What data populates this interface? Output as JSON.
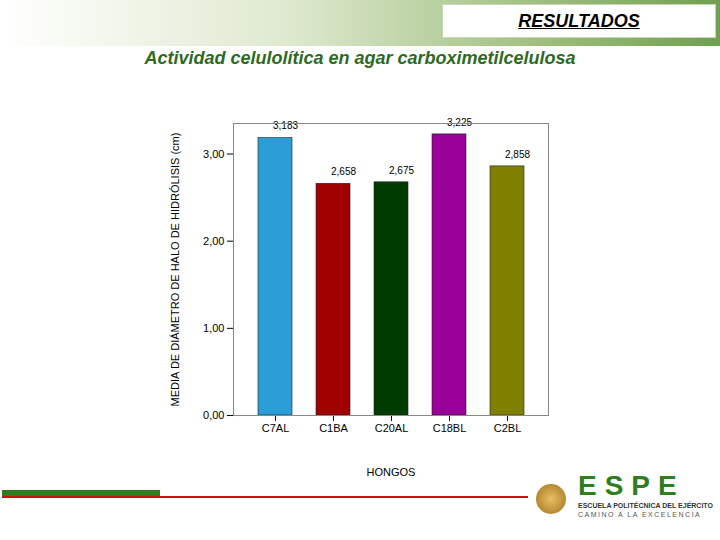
{
  "chart_data": {
    "type": "bar",
    "title": "Actividad celulolítica en agar carboximetilcelulosa",
    "annotations": [
      "RESULTADOS",
      "ESPE",
      "ESCUELA POLITÉCNICA DEL EJÉRCITO",
      "CAMINO A LA EXCELENCIA"
    ],
    "x_label": "HONGOS",
    "y_label": "MEDIA DE DIÁMETRO DE HALO DE HIDRÓLISIS (cm)",
    "categories": [
      "C7AL",
      "C1BA",
      "C20AL",
      "C18BL",
      "C2BL"
    ],
    "values": [
      3.183,
      2.658,
      2.675,
      3.225,
      2.858
    ],
    "value_labels": [
      "3,183",
      "2,658",
      "2,675",
      "3,225",
      "2,858"
    ],
    "colors": [
      "#2b9ed8",
      "#a00000",
      "#003c00",
      "#990099",
      "#808000"
    ],
    "ylim": [
      0,
      3.35
    ],
    "yticks": [
      {
        "value": 0,
        "label": "0,00"
      },
      {
        "value": 1,
        "label": "1,00"
      },
      {
        "value": 2,
        "label": "2,00"
      },
      {
        "value": 3,
        "label": "3,00"
      }
    ],
    "grid": false,
    "data_labels": true
  }
}
